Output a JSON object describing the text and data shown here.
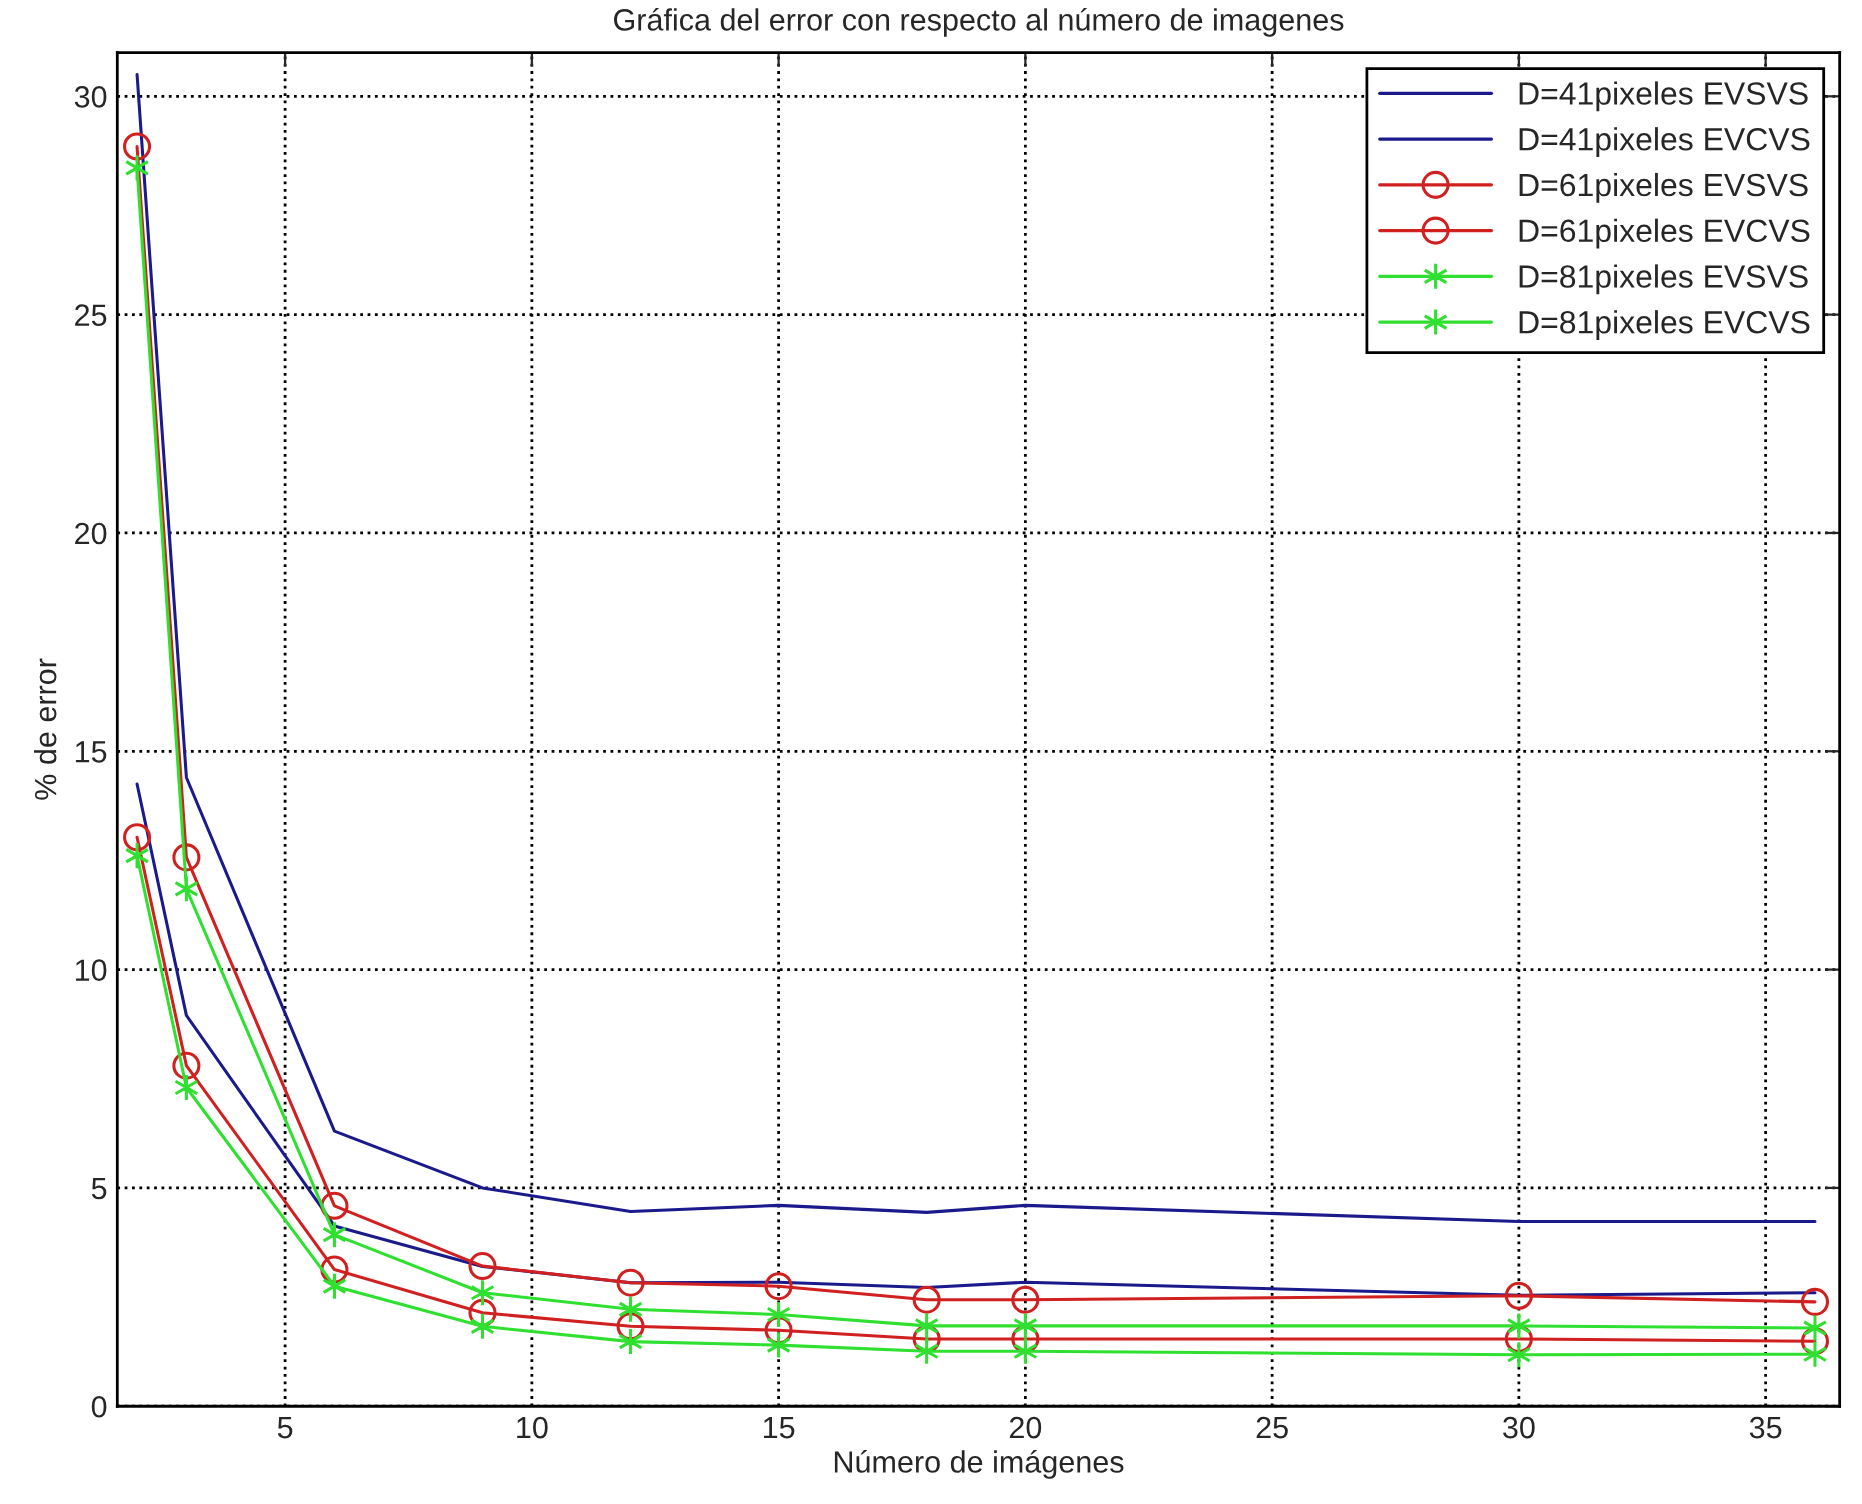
{
  "chart_data": {
    "type": "line",
    "title": "Gráfica del error con respecto al número de imagenes",
    "xlabel": "Número de imágenes",
    "ylabel": "% de error",
    "xlim": [
      1.6,
      36.5
    ],
    "ylim": [
      0,
      31
    ],
    "xticks": [
      5,
      10,
      15,
      20,
      25,
      30,
      35
    ],
    "yticks": [
      0,
      5,
      10,
      15,
      20,
      25,
      30
    ],
    "grid": true,
    "legend": "top right",
    "line_style": "solid",
    "x": [
      2,
      3,
      6,
      9,
      12,
      15,
      18,
      20,
      30,
      36
    ],
    "series": [
      {
        "name": "D=41pixeles EVSVS",
        "color": "#1a1a8c",
        "marker": "none",
        "values": [
          30.5,
          14.4,
          6.3,
          5.0,
          4.46,
          4.6,
          4.44,
          4.6,
          4.23,
          4.23
        ]
      },
      {
        "name": "D=41pixeles EVCVS",
        "color": "#1a1a8c",
        "marker": "none",
        "values": [
          14.25,
          8.95,
          4.13,
          3.2,
          2.83,
          2.84,
          2.72,
          2.84,
          2.54,
          2.6
        ]
      },
      {
        "name": "D=61pixeles EVSVS",
        "color": "#d02020",
        "marker": "circle",
        "values": [
          28.85,
          12.57,
          4.59,
          3.21,
          2.83,
          2.75,
          2.44,
          2.44,
          2.53,
          2.39
        ]
      },
      {
        "name": "D=61pixeles EVCVS",
        "color": "#d02020",
        "marker": "circle",
        "values": [
          13.03,
          7.8,
          3.13,
          2.14,
          1.83,
          1.74,
          1.54,
          1.54,
          1.54,
          1.49
        ]
      },
      {
        "name": "D=81pixeles EVSVS",
        "color": "#30e030",
        "marker": "cross",
        "values": [
          28.36,
          11.85,
          3.93,
          2.6,
          2.22,
          2.1,
          1.84,
          1.84,
          1.84,
          1.79
        ]
      },
      {
        "name": "D=81pixeles EVCVS",
        "color": "#30e030",
        "marker": "cross",
        "values": [
          12.61,
          7.3,
          2.75,
          1.83,
          1.48,
          1.4,
          1.26,
          1.26,
          1.18,
          1.19
        ]
      }
    ]
  }
}
